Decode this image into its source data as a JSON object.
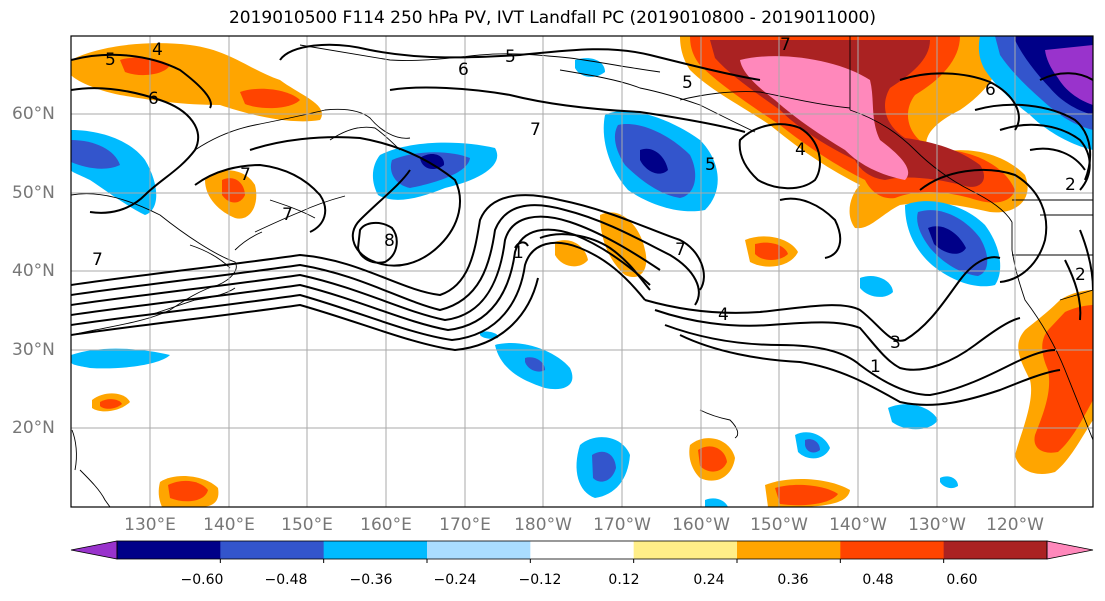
{
  "title": "2019010500 F114 250 hPa PV, IVT Landfall PC (2019010800 - 2019011000)",
  "map": {
    "lat_labels": [
      "60°N",
      "50°N",
      "40°N",
      "30°N",
      "20°N"
    ],
    "lon_labels": [
      "130°E",
      "140°E",
      "150°E",
      "160°E",
      "170°E",
      "180°W",
      "170°W",
      "160°W",
      "150°W",
      "140°W",
      "130°W",
      "120°W"
    ],
    "contour_labels": [
      "5",
      "4",
      "6",
      "5",
      "6",
      "7",
      "5",
      "8",
      "7",
      "7",
      "7",
      "5",
      "4",
      "1",
      "4",
      "3",
      "1",
      "2",
      "2",
      "6",
      "7",
      "7"
    ],
    "fill_colors": {
      "purple": "#9933CC",
      "navy": "#000088",
      "blue": "#3355CC",
      "cyan": "#00BBFF",
      "lightblue": "#AADDFF",
      "yellow": "#FFEE88",
      "orange": "#FFA500",
      "red_orange": "#FF4400",
      "dark_red": "#AA2222",
      "pink": "#FF88BB"
    }
  },
  "colorbar": {
    "ticks": [
      "−0.60",
      "−0.48",
      "−0.36",
      "−0.24",
      "−0.12",
      "0.12",
      "0.24",
      "0.36",
      "0.48",
      "0.60"
    ],
    "colors": [
      "#9933CC",
      "#000088",
      "#3355CC",
      "#00BBFF",
      "#AADDFF",
      "#FFFFFF",
      "#FFEE88",
      "#FFA500",
      "#FF4400",
      "#AA2222",
      "#FF88BB"
    ]
  }
}
